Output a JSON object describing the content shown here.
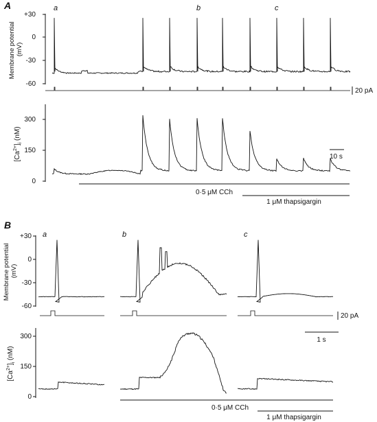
{
  "panels": {
    "A": {
      "label": "A",
      "subpanel_labels": [
        "a",
        "b",
        "c"
      ],
      "scale_bar_time": "10 s"
    },
    "B": {
      "label": "B",
      "subpanel_labels": [
        "a",
        "b",
        "c"
      ],
      "scale_bar_time": "1 s"
    }
  },
  "shared": {
    "current_scale": "20 pA",
    "cch_label": "0·5 μM CCh",
    "thapsigargin_label": "1 μM thapsigargin"
  },
  "chart_data": [
    {
      "type": "line",
      "panel": "A-top",
      "ylabel": "Membrane potential (mV)",
      "yticks": [
        "+30",
        "0",
        "-30",
        "-60"
      ],
      "ylim": [
        -60,
        35
      ],
      "x": [
        0,
        15,
        30,
        40,
        55,
        70,
        80,
        95,
        102,
        109,
        116,
        125,
        133,
        140,
        148,
        152
      ],
      "series": [
        {
          "values": [
            -48,
            -48,
            -44,
            -48,
            -47,
            -46,
            -44,
            -46,
            -45,
            -46,
            -44,
            -46,
            -45,
            -46,
            -45,
            -47
          ]
        }
      ],
      "spike_times": [
        5,
        40,
        52,
        64,
        76,
        88,
        100,
        112,
        124,
        135,
        148
      ],
      "spike_peak": 25
    },
    {
      "type": "line",
      "panel": "A-bottom",
      "ylabel": "[Ca2+]i (nM)",
      "yticks": [
        "300",
        "150",
        "0"
      ],
      "ylim": [
        0,
        360
      ],
      "x": [
        0,
        10,
        20,
        30,
        40,
        52,
        64,
        76,
        88,
        100,
        112,
        124,
        135,
        148
      ],
      "series": [
        {
          "values": [
            35,
            35,
            40,
            45,
            48,
            50,
            50,
            50,
            50,
            50,
            50,
            50,
            50,
            50
          ]
        }
      ],
      "transient_times": [
        5,
        40,
        52,
        64,
        76,
        88,
        100,
        112,
        124,
        135
      ],
      "transient_peaks": [
        80,
        320,
        300,
        300,
        305,
        240,
        110,
        110,
        100,
        110
      ]
    },
    {
      "type": "line",
      "panel": "B-top",
      "ylabel": "Membrane potential (mV)",
      "yticks": [
        "+30",
        "0",
        "-30",
        "-60"
      ],
      "ylim": [
        -60,
        35
      ],
      "segments": [
        "a",
        "b",
        "c"
      ],
      "peaks": [
        25,
        20,
        20
      ]
    },
    {
      "type": "line",
      "panel": "B-bottom",
      "ylabel": "[Ca2+]i (nM)",
      "yticks": [
        "300",
        "150",
        "0"
      ],
      "ylim": [
        0,
        360
      ],
      "segments": [
        "a",
        "b",
        "c"
      ],
      "peaks": [
        75,
        320,
        95
      ]
    }
  ]
}
